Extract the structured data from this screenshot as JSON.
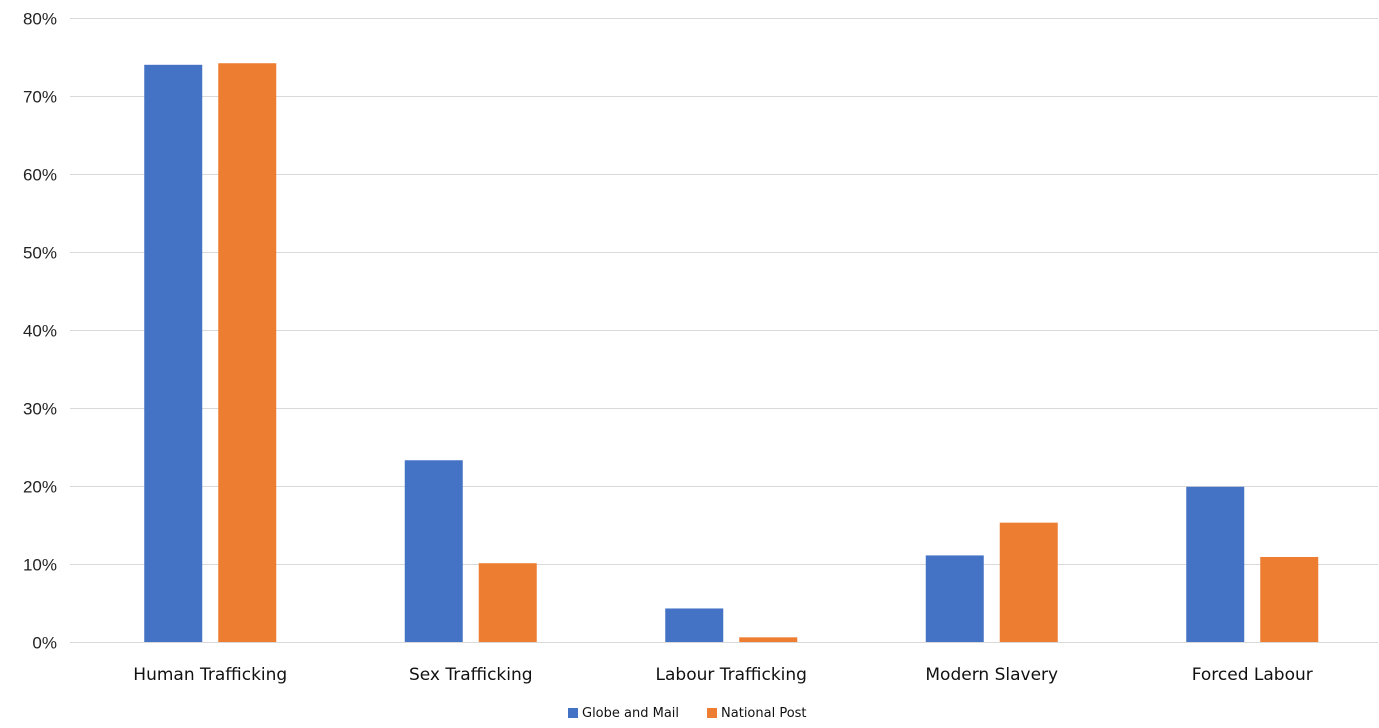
{
  "chart_data": {
    "type": "bar",
    "title": "",
    "xlabel": "",
    "ylabel": "",
    "categories": [
      "Human Trafficking",
      "Sex Trafficking",
      "Labour Trafficking",
      "Modern Slavery",
      "Forced Labour"
    ],
    "series": [
      {
        "name": "Globe and Mail",
        "color": "#4472C4",
        "values": [
          74,
          23.3,
          4.3,
          11.1,
          19.9
        ]
      },
      {
        "name": "National Post",
        "color": "#ED7D31",
        "values": [
          74.2,
          10.1,
          0.6,
          15.3,
          10.9
        ]
      }
    ],
    "ylim": [
      0,
      80
    ],
    "yticks": [
      0,
      10,
      20,
      30,
      40,
      50,
      60,
      70,
      80
    ],
    "ytick_labels": [
      "0%",
      "10%",
      "20%",
      "30%",
      "40%",
      "50%",
      "60%",
      "70%",
      "80%"
    ],
    "grid": true,
    "legend_position": "bottom"
  }
}
